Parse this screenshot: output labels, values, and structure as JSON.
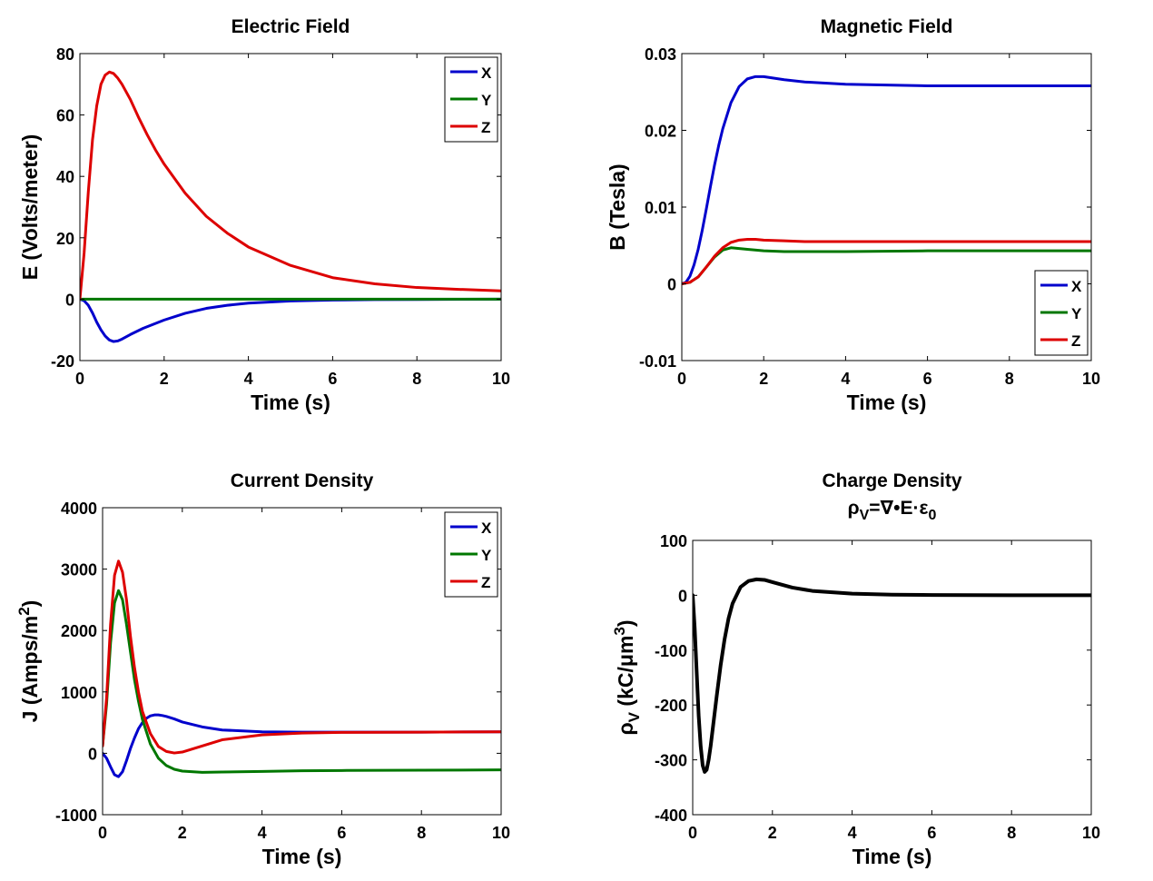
{
  "charts": [
    {
      "title": "Electric Field",
      "subtitle": "",
      "xlabel": "Time (s)",
      "ylabel": "E (Volts/meter)",
      "ylabel_super": "",
      "ylabel_sub": "",
      "ylabel_tail": "",
      "xticks": [
        "0",
        "2",
        "4",
        "6",
        "8",
        "10"
      ],
      "yticks": [
        "-20",
        "0",
        "20",
        "40",
        "60",
        "80"
      ],
      "legend": [
        "X",
        "Y",
        "Z"
      ]
    },
    {
      "title": "Magnetic Field",
      "subtitle": "",
      "xlabel": "Time (s)",
      "ylabel": "B (Tesla)",
      "ylabel_super": "",
      "ylabel_sub": "",
      "ylabel_tail": "",
      "xticks": [
        "0",
        "2",
        "4",
        "6",
        "8",
        "10"
      ],
      "yticks": [
        "-0.01",
        "0",
        "0.01",
        "0.02",
        "0.03"
      ],
      "legend": [
        "X",
        "Y",
        "Z"
      ]
    },
    {
      "title": "Current Density",
      "subtitle": "",
      "xlabel": "Time (s)",
      "ylabel": "J (Amps/m",
      "ylabel_super": "2",
      "ylabel_sub": "",
      "ylabel_tail": ")",
      "xticks": [
        "0",
        "2",
        "4",
        "6",
        "8",
        "10"
      ],
      "yticks": [
        "-1000",
        "0",
        "1000",
        "2000",
        "3000",
        "4000"
      ],
      "legend": [
        "X",
        "Y",
        "Z"
      ]
    },
    {
      "title": "Charge Density",
      "subtitle": "ρV=∇•E·ε0",
      "xlabel": "Time (s)",
      "ylabel": "ρ",
      "ylabel_sub": "V",
      "ylabel_mid": " (kC/μm",
      "ylabel_super": "3",
      "ylabel_tail": ")",
      "xticks": [
        "0",
        "2",
        "4",
        "6",
        "8",
        "10"
      ],
      "yticks": [
        "-400",
        "-300",
        "-200",
        "-100",
        "0",
        "100"
      ],
      "legend": []
    }
  ],
  "chart_data": [
    {
      "type": "line",
      "title": "Electric Field",
      "xlabel": "Time (s)",
      "ylabel": "E (Volts/meter)",
      "xlim": [
        0,
        10
      ],
      "ylim": [
        -20,
        80
      ],
      "grid": false,
      "legend_position": "top-right",
      "series": [
        {
          "name": "X",
          "color": "#0000cc",
          "x": [
            0,
            0.1,
            0.2,
            0.3,
            0.4,
            0.5,
            0.6,
            0.7,
            0.8,
            0.9,
            1.0,
            1.2,
            1.5,
            2.0,
            2.5,
            3.0,
            3.5,
            4.0,
            5.0,
            6.0,
            7.0,
            8.0,
            10.0
          ],
          "y": [
            0,
            -0.5,
            -2.0,
            -4.5,
            -7.5,
            -10.0,
            -12.0,
            -13.3,
            -13.8,
            -13.6,
            -13.0,
            -11.5,
            -9.5,
            -6.8,
            -4.6,
            -3.0,
            -2.0,
            -1.3,
            -0.6,
            -0.3,
            -0.15,
            -0.1,
            0
          ]
        },
        {
          "name": "Y",
          "color": "#007700",
          "x": [
            0,
            10
          ],
          "y": [
            0,
            0
          ]
        },
        {
          "name": "Z",
          "color": "#dd0000",
          "x": [
            0,
            0.1,
            0.2,
            0.3,
            0.4,
            0.5,
            0.6,
            0.7,
            0.8,
            0.9,
            1.0,
            1.2,
            1.4,
            1.6,
            1.8,
            2.0,
            2.5,
            3.0,
            3.5,
            4.0,
            5.0,
            6.0,
            7.0,
            8.0,
            9.0,
            10.0
          ],
          "y": [
            0,
            15,
            35,
            52,
            63,
            70,
            73,
            74,
            73.5,
            72,
            70,
            65,
            59,
            53.5,
            48.5,
            44,
            34.5,
            27,
            21.5,
            17,
            11,
            7,
            5,
            3.8,
            3.2,
            2.7
          ]
        }
      ]
    },
    {
      "type": "line",
      "title": "Magnetic Field",
      "xlabel": "Time (s)",
      "ylabel": "B (Tesla)",
      "xlim": [
        0,
        10
      ],
      "ylim": [
        -0.01,
        0.03
      ],
      "grid": false,
      "legend_position": "bottom-right",
      "series": [
        {
          "name": "X",
          "color": "#0000cc",
          "x": [
            0,
            0.1,
            0.2,
            0.3,
            0.4,
            0.5,
            0.6,
            0.7,
            0.8,
            0.9,
            1.0,
            1.2,
            1.4,
            1.6,
            1.8,
            2.0,
            2.5,
            3.0,
            4.0,
            5.0,
            6.0,
            8.0,
            10.0
          ],
          "y": [
            0,
            0.0002,
            0.001,
            0.0025,
            0.0045,
            0.007,
            0.0098,
            0.0127,
            0.0155,
            0.018,
            0.0202,
            0.0236,
            0.0257,
            0.0267,
            0.027,
            0.027,
            0.0266,
            0.0263,
            0.026,
            0.0259,
            0.0258,
            0.0258,
            0.0258
          ]
        },
        {
          "name": "Y",
          "color": "#007700",
          "x": [
            0,
            0.2,
            0.4,
            0.6,
            0.8,
            1.0,
            1.2,
            1.4,
            1.6,
            2.0,
            2.5,
            3.0,
            4.0,
            6.0,
            8.0,
            10.0
          ],
          "y": [
            0,
            0.0002,
            0.0009,
            0.0022,
            0.0035,
            0.0044,
            0.0047,
            0.0046,
            0.0045,
            0.0043,
            0.0042,
            0.0042,
            0.0042,
            0.0043,
            0.0043,
            0.0043
          ]
        },
        {
          "name": "Z",
          "color": "#dd0000",
          "x": [
            0,
            0.2,
            0.4,
            0.6,
            0.8,
            1.0,
            1.2,
            1.4,
            1.6,
            1.8,
            2.0,
            2.5,
            3.0,
            4.0,
            6.0,
            8.0,
            10.0
          ],
          "y": [
            0,
            0.0002,
            0.0009,
            0.0022,
            0.0036,
            0.0047,
            0.0054,
            0.0057,
            0.0058,
            0.0058,
            0.0057,
            0.0056,
            0.0055,
            0.0055,
            0.0055,
            0.0055,
            0.0055
          ]
        }
      ]
    },
    {
      "type": "line",
      "title": "Current Density",
      "xlabel": "Time (s)",
      "ylabel": "J (Amps/m2)",
      "xlim": [
        0,
        10
      ],
      "ylim": [
        -1000,
        4000
      ],
      "grid": false,
      "legend_position": "top-right",
      "series": [
        {
          "name": "X",
          "color": "#0000cc",
          "x": [
            0,
            0.1,
            0.2,
            0.3,
            0.4,
            0.5,
            0.6,
            0.7,
            0.8,
            0.9,
            1.0,
            1.1,
            1.2,
            1.3,
            1.4,
            1.5,
            1.6,
            1.8,
            2.0,
            2.5,
            3.0,
            4.0,
            5.0,
            6.0,
            8.0,
            10.0
          ],
          "y": [
            0,
            -80,
            -220,
            -350,
            -380,
            -300,
            -120,
            80,
            250,
            400,
            500,
            570,
            610,
            625,
            625,
            615,
            600,
            560,
            510,
            430,
            380,
            350,
            345,
            345,
            345,
            350
          ]
        },
        {
          "name": "Y",
          "color": "#007700",
          "x": [
            0,
            0.1,
            0.2,
            0.3,
            0.4,
            0.5,
            0.6,
            0.7,
            0.8,
            0.9,
            1.0,
            1.2,
            1.4,
            1.6,
            1.8,
            2.0,
            2.5,
            3.0,
            4.0,
            5.0,
            6.0,
            8.0,
            10.0
          ],
          "y": [
            120,
            800,
            1800,
            2450,
            2650,
            2500,
            2100,
            1650,
            1200,
            850,
            550,
            150,
            -80,
            -200,
            -260,
            -290,
            -310,
            -305,
            -295,
            -285,
            -280,
            -275,
            -270
          ]
        },
        {
          "name": "Z",
          "color": "#dd0000",
          "x": [
            0,
            0.1,
            0.2,
            0.3,
            0.4,
            0.5,
            0.6,
            0.7,
            0.8,
            0.9,
            1.0,
            1.2,
            1.4,
            1.6,
            1.8,
            2.0,
            2.5,
            3.0,
            4.0,
            5.0,
            6.0,
            8.0,
            10.0
          ],
          "y": [
            120,
            900,
            2100,
            2900,
            3130,
            2950,
            2500,
            1900,
            1400,
            1000,
            680,
            320,
            110,
            30,
            5,
            20,
            120,
            220,
            300,
            330,
            340,
            345,
            350
          ]
        }
      ]
    },
    {
      "type": "line",
      "title": "Charge Density",
      "subtitle": "ρV=∇•E·ε0",
      "xlabel": "Time (s)",
      "ylabel": "ρV (kC/μm3)",
      "xlim": [
        0,
        10
      ],
      "ylim": [
        -400,
        100
      ],
      "grid": false,
      "legend_position": "none",
      "series": [
        {
          "name": "",
          "color": "#000000",
          "x": [
            0,
            0.05,
            0.1,
            0.15,
            0.2,
            0.25,
            0.3,
            0.35,
            0.4,
            0.45,
            0.5,
            0.6,
            0.7,
            0.8,
            0.9,
            1.0,
            1.2,
            1.4,
            1.6,
            1.8,
            2.0,
            2.5,
            3.0,
            4.0,
            5.0,
            6.0,
            8.0,
            10.0
          ],
          "y": [
            0,
            -60,
            -140,
            -220,
            -275,
            -310,
            -322,
            -318,
            -300,
            -275,
            -245,
            -185,
            -128,
            -80,
            -42,
            -15,
            15,
            26,
            29,
            28,
            24,
            14,
            8,
            3,
            1,
            0.5,
            0,
            0
          ]
        }
      ]
    }
  ]
}
